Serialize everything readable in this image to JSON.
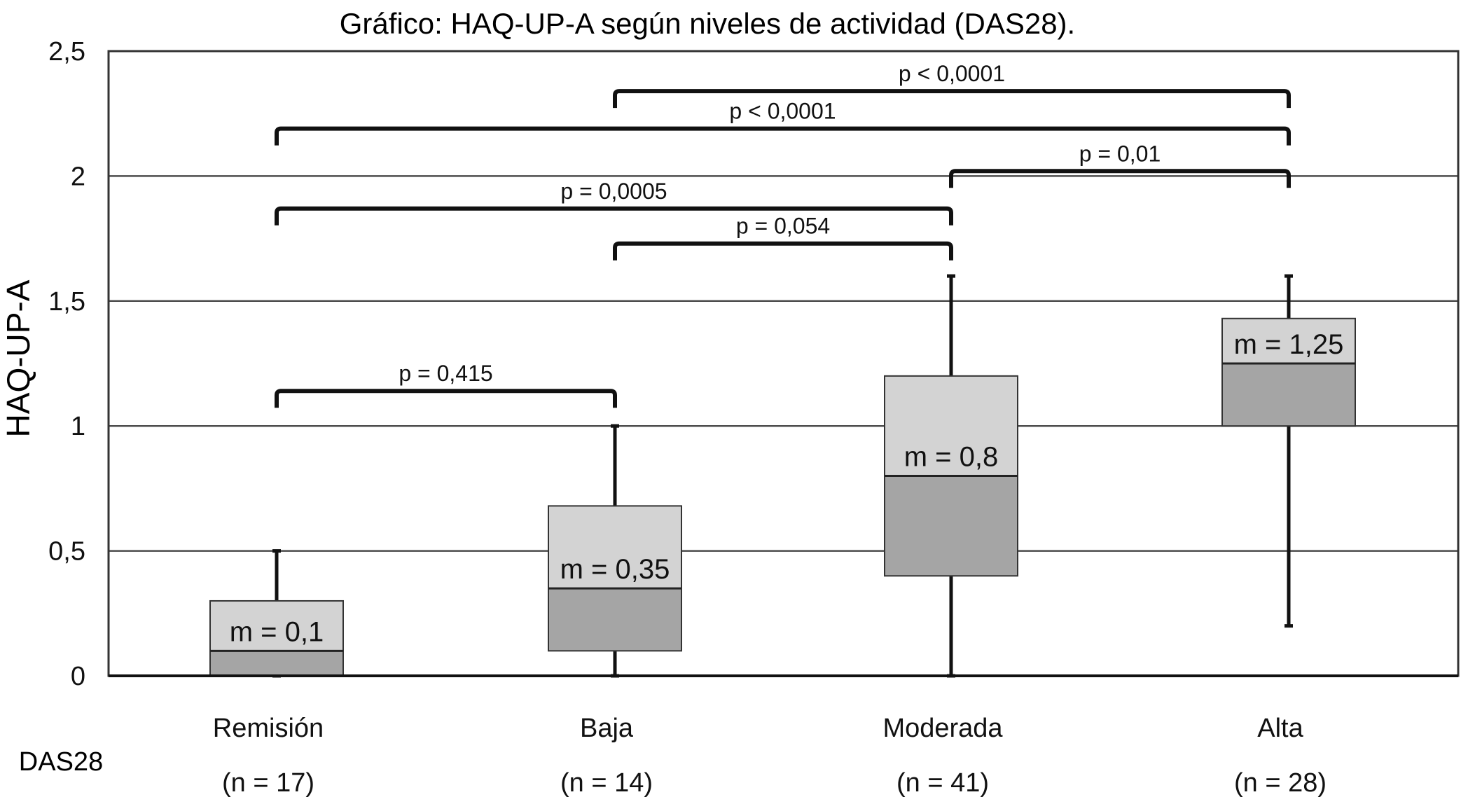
{
  "chart_data": {
    "type": "box",
    "title": "Gráfico: HAQ-UP-A según niveles de actividad (DAS28).",
    "ylabel": "HAQ-UP-A",
    "xlabel": "DAS28",
    "ylim": [
      0,
      2.5
    ],
    "yticks": [
      {
        "value": 0,
        "label": "0"
      },
      {
        "value": 0.5,
        "label": "0,5"
      },
      {
        "value": 1,
        "label": "1"
      },
      {
        "value": 1.5,
        "label": "1,5"
      },
      {
        "value": 2,
        "label": "2"
      },
      {
        "value": 2.5,
        "label": "2,5"
      }
    ],
    "grid": true,
    "categories": [
      {
        "name": "Remisión",
        "n_label": "(n = 17)",
        "min": 0,
        "q1": 0,
        "median": 0.1,
        "q3": 0.3,
        "max": 0.5,
        "median_label": "m = 0,1"
      },
      {
        "name": "Baja",
        "n_label": "(n = 14)",
        "min": 0,
        "q1": 0.1,
        "median": 0.35,
        "q3": 0.68,
        "max": 1.0,
        "median_label": "m = 0,35"
      },
      {
        "name": "Moderada",
        "n_label": "(n = 41)",
        "min": 0,
        "q1": 0.4,
        "median": 0.8,
        "q3": 1.2,
        "max": 1.6,
        "median_label": "m = 0,8"
      },
      {
        "name": "Alta",
        "n_label": "(n = 28)",
        "min": 0.2,
        "q1": 1.0,
        "median": 1.25,
        "q3": 1.43,
        "max": 1.6,
        "median_label": "m = 1,25"
      }
    ],
    "comparisons": [
      {
        "from": 0,
        "to": 1,
        "label": "p = 0,415",
        "y": 1.14
      },
      {
        "from": 1,
        "to": 2,
        "label": "p = 0,054",
        "y": 1.73
      },
      {
        "from": 0,
        "to": 2,
        "label": "p = 0,0005",
        "y": 1.87
      },
      {
        "from": 2,
        "to": 3,
        "label": "p = 0,01",
        "y": 2.02
      },
      {
        "from": 0,
        "to": 3,
        "label": "p < 0,0001",
        "y": 2.19
      },
      {
        "from": 1,
        "to": 3,
        "label": "p < 0,0001",
        "y": 2.34
      }
    ],
    "colors": {
      "upper_box": "#d3d3d3",
      "lower_box": "#a5a5a5",
      "axis": "#333333",
      "grid": "#4d4d4d",
      "text": "#111111"
    }
  }
}
